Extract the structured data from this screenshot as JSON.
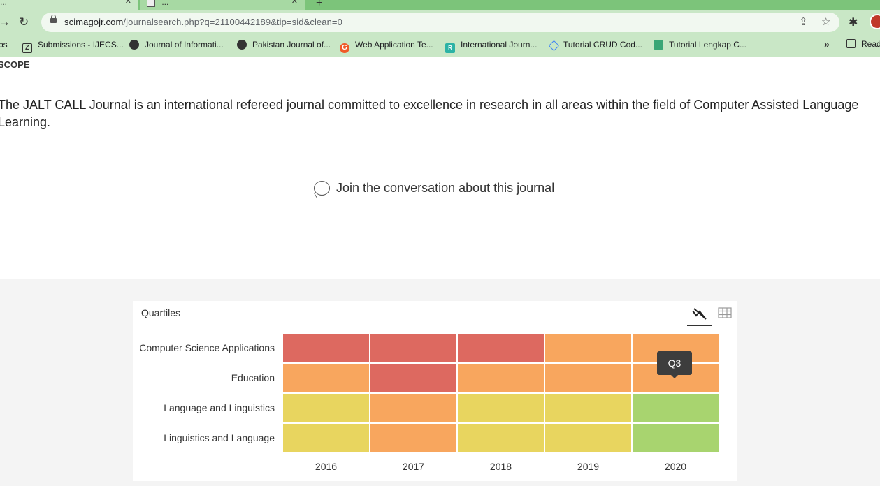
{
  "browser": {
    "tabs": [
      {
        "label": "...",
        "active": true
      },
      {
        "label": "...",
        "active": false
      }
    ],
    "url_host": "scimagojr.com",
    "url_path": "/journalsearch.php?q=21100442189&tip=sid&clean=0",
    "bookmarks": [
      {
        "label": "ps",
        "icon": "apps-icon"
      },
      {
        "label": "Submissions - IJECS...",
        "icon": "z-logo-icon"
      },
      {
        "label": "Journal of Informati...",
        "icon": "globe-icon"
      },
      {
        "label": "Pakistan Journal of...",
        "icon": "globe-icon"
      },
      {
        "label": "Web Application Te...",
        "icon": "orange-logo-icon"
      },
      {
        "label": "International Journ...",
        "icon": "researchgate-icon"
      },
      {
        "label": "Tutorial CRUD Cod...",
        "icon": "code-icon"
      },
      {
        "label": "Tutorial Lengkap C...",
        "icon": "book-icon"
      }
    ],
    "more_label": "»",
    "reading_list_label": "Read"
  },
  "scope": {
    "heading": "SCOPE",
    "text": "The JALT CALL Journal is an international refereed journal committed to excellence in research in all areas within the field of Computer Assisted Language Learning."
  },
  "conversation": {
    "label": "Join the conversation about this journal"
  },
  "quartiles_card": {
    "title": "Quartiles",
    "tooltip": "Q3"
  },
  "chart_data": {
    "type": "heatmap",
    "title": "Quartiles",
    "x": [
      "2016",
      "2017",
      "2018",
      "2019",
      "2020"
    ],
    "y": [
      "Computer Science Applications",
      "Education",
      "Language and Linguistics",
      "Linguistics and Language"
    ],
    "values": [
      [
        "Q4",
        "Q4",
        "Q4",
        "Q3",
        "Q3"
      ],
      [
        "Q3",
        "Q4",
        "Q3",
        "Q3",
        "Q3"
      ],
      [
        "Q2",
        "Q3",
        "Q2",
        "Q2",
        "Q1"
      ],
      [
        "Q2",
        "Q3",
        "Q2",
        "Q2",
        "Q1"
      ]
    ],
    "legend_colors": {
      "Q1": "#a8d46f",
      "Q2": "#e8d55f",
      "Q3": "#f8a65e",
      "Q4": "#dd6960"
    }
  }
}
